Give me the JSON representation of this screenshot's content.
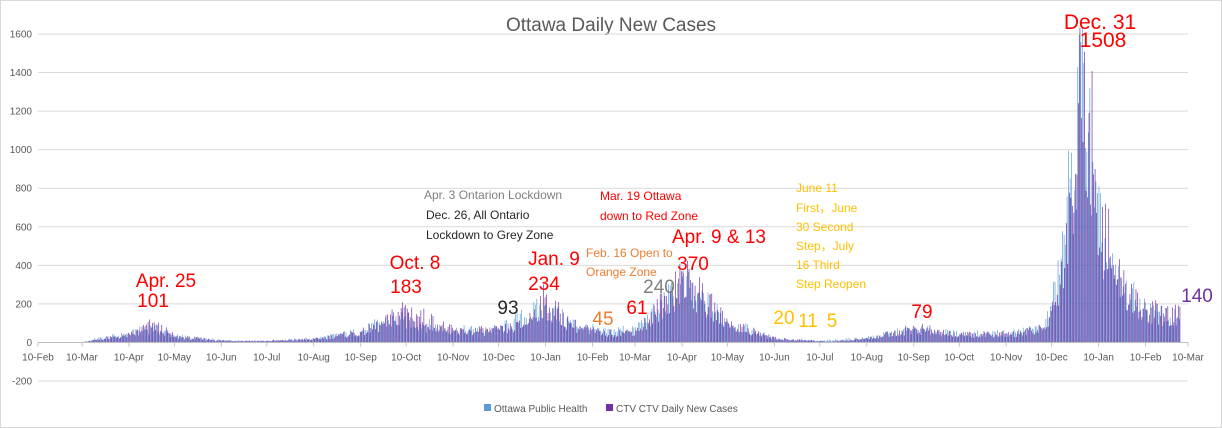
{
  "chart_data": {
    "type": "bar",
    "title": "Ottawa Daily New Cases",
    "xlabel": "",
    "ylabel": "",
    "ylim": [
      -200,
      1600
    ],
    "y_ticks": [
      -200,
      0,
      200,
      400,
      600,
      800,
      1000,
      1200,
      1400,
      1600
    ],
    "x_tick_labels": [
      "10-Feb",
      "10-Mar",
      "10-Apr",
      "10-May",
      "10-Jun",
      "10-Jul",
      "10-Aug",
      "10-Sep",
      "10-Oct",
      "10-Nov",
      "10-Dec",
      "10-Jan",
      "10-Feb",
      "10-Mar",
      "10-Apr",
      "10-May",
      "10-Jun",
      "10-Jul",
      "10-Aug",
      "10-Sep",
      "10-Oct",
      "10-Nov",
      "10-Dec",
      "10-Jan",
      "10-Feb",
      "10-Mar"
    ],
    "grid": true,
    "legend_position": "bottom",
    "series": [
      {
        "name": "Ottawa Public Health",
        "color": "#5b9bd5",
        "keypoints": [
          {
            "x": "2020-02-10",
            "y": 0
          },
          {
            "x": "2020-03-10",
            "y": 2
          },
          {
            "x": "2020-03-20",
            "y": 20
          },
          {
            "x": "2020-04-10",
            "y": 45
          },
          {
            "x": "2020-04-25",
            "y": 80
          },
          {
            "x": "2020-05-10",
            "y": 35
          },
          {
            "x": "2020-06-10",
            "y": 10
          },
          {
            "x": "2020-07-10",
            "y": 10
          },
          {
            "x": "2020-08-10",
            "y": 20
          },
          {
            "x": "2020-09-10",
            "y": 60
          },
          {
            "x": "2020-09-25",
            "y": 110
          },
          {
            "x": "2020-10-08",
            "y": 120
          },
          {
            "x": "2020-11-10",
            "y": 65
          },
          {
            "x": "2020-12-10",
            "y": 70
          },
          {
            "x": "2021-01-09",
            "y": 190
          },
          {
            "x": "2021-01-25",
            "y": 110
          },
          {
            "x": "2021-02-16",
            "y": 55
          },
          {
            "x": "2021-03-10",
            "y": 80
          },
          {
            "x": "2021-03-25",
            "y": 170
          },
          {
            "x": "2021-04-09",
            "y": 300
          },
          {
            "x": "2021-04-20",
            "y": 250
          },
          {
            "x": "2021-05-10",
            "y": 110
          },
          {
            "x": "2021-06-10",
            "y": 20
          },
          {
            "x": "2021-07-10",
            "y": 8
          },
          {
            "x": "2021-08-10",
            "y": 25
          },
          {
            "x": "2021-09-10",
            "y": 70
          },
          {
            "x": "2021-10-10",
            "y": 45
          },
          {
            "x": "2021-11-10",
            "y": 50
          },
          {
            "x": "2021-12-05",
            "y": 80
          },
          {
            "x": "2021-12-15",
            "y": 350
          },
          {
            "x": "2021-12-22",
            "y": 850
          },
          {
            "x": "2021-12-31",
            "y": 1450
          },
          {
            "x": "2022-01-07",
            "y": 700
          },
          {
            "x": "2022-01-20",
            "y": 330
          },
          {
            "x": "2022-02-10",
            "y": 170
          },
          {
            "x": "2022-03-05",
            "y": 120
          }
        ]
      },
      {
        "name": "CTV CTV Daily New Cases",
        "color": "#7030a0",
        "keypoints": [
          {
            "x": "2020-02-10",
            "y": 0
          },
          {
            "x": "2020-03-10",
            "y": 2
          },
          {
            "x": "2020-03-20",
            "y": 15
          },
          {
            "x": "2020-04-10",
            "y": 40
          },
          {
            "x": "2020-04-25",
            "y": 101
          },
          {
            "x": "2020-05-10",
            "y": 30
          },
          {
            "x": "2020-06-10",
            "y": 10
          },
          {
            "x": "2020-07-10",
            "y": 8
          },
          {
            "x": "2020-08-10",
            "y": 18
          },
          {
            "x": "2020-09-10",
            "y": 55
          },
          {
            "x": "2020-09-25",
            "y": 100
          },
          {
            "x": "2020-10-08",
            "y": 183
          },
          {
            "x": "2020-11-10",
            "y": 60
          },
          {
            "x": "2020-12-10",
            "y": 65
          },
          {
            "x": "2020-12-26",
            "y": 93
          },
          {
            "x": "2021-01-09",
            "y": 234
          },
          {
            "x": "2021-01-25",
            "y": 100
          },
          {
            "x": "2021-02-16",
            "y": 45
          },
          {
            "x": "2021-03-10",
            "y": 61
          },
          {
            "x": "2021-03-19",
            "y": 120
          },
          {
            "x": "2021-03-30",
            "y": 240
          },
          {
            "x": "2021-04-09",
            "y": 370
          },
          {
            "x": "2021-04-20",
            "y": 260
          },
          {
            "x": "2021-05-10",
            "y": 100
          },
          {
            "x": "2021-06-11",
            "y": 20
          },
          {
            "x": "2021-06-30",
            "y": 11
          },
          {
            "x": "2021-07-16",
            "y": 5
          },
          {
            "x": "2021-08-10",
            "y": 20
          },
          {
            "x": "2021-09-10",
            "y": 79
          },
          {
            "x": "2021-10-10",
            "y": 40
          },
          {
            "x": "2021-11-10",
            "y": 45
          },
          {
            "x": "2021-12-05",
            "y": 70
          },
          {
            "x": "2021-12-15",
            "y": 300
          },
          {
            "x": "2021-12-22",
            "y": 750
          },
          {
            "x": "2021-12-31",
            "y": 1508
          },
          {
            "x": "2022-01-07",
            "y": 900
          },
          {
            "x": "2022-01-20",
            "y": 350
          },
          {
            "x": "2022-02-10",
            "y": 170
          },
          {
            "x": "2022-03-05",
            "y": 140
          }
        ]
      }
    ],
    "annotations": [
      {
        "text": "Apr. 25",
        "date": "2020-04-25",
        "value": 101,
        "color": "#ff0000",
        "size": "large"
      },
      {
        "text": "101",
        "date": "2020-04-25",
        "value": 101,
        "color": "#ff0000",
        "size": "large"
      },
      {
        "text": "Oct. 8",
        "date": "2020-10-08",
        "value": 183,
        "color": "#ff0000",
        "size": "large"
      },
      {
        "text": "183",
        "date": "2020-10-08",
        "value": 183,
        "color": "#ff0000",
        "size": "large"
      },
      {
        "text": "93",
        "date": "2020-12-26",
        "value": 93,
        "color": "#262626",
        "size": "large"
      },
      {
        "text": "Jan. 9",
        "date": "2021-01-09",
        "value": 234,
        "color": "#ff0000",
        "size": "large"
      },
      {
        "text": "234",
        "date": "2021-01-09",
        "value": 234,
        "color": "#ff0000",
        "size": "large"
      },
      {
        "text": "45",
        "date": "2021-02-16",
        "value": 45,
        "color": "#ed7d31",
        "size": "large"
      },
      {
        "text": "61",
        "date": "2021-03-10",
        "value": 61,
        "color": "#ff0000",
        "size": "large"
      },
      {
        "text": "240",
        "date": "2021-03-30",
        "value": 240,
        "color": "#7f7f7f",
        "size": "large"
      },
      {
        "text": "Apr. 9 & 13",
        "date": "2021-04-09",
        "value": 370,
        "color": "#ff0000",
        "size": "large"
      },
      {
        "text": "370",
        "date": "2021-04-09",
        "value": 370,
        "color": "#ff0000",
        "size": "large"
      },
      {
        "text": "20",
        "date": "2021-06-11",
        "value": 20,
        "color": "#ffc000",
        "size": "large"
      },
      {
        "text": "11",
        "date": "2021-06-30",
        "value": 11,
        "color": "#ffc000",
        "size": "large"
      },
      {
        "text": "5",
        "date": "2021-07-16",
        "value": 5,
        "color": "#ffc000",
        "size": "large"
      },
      {
        "text": "79",
        "date": "2021-09-10",
        "value": 79,
        "color": "#ff0000",
        "size": "large"
      },
      {
        "text": "Dec. 31",
        "date": "2021-12-31",
        "value": 1508,
        "color": "#ff0000",
        "size": "large"
      },
      {
        "text": "1508",
        "date": "2021-12-31",
        "value": 1508,
        "color": "#ff0000",
        "size": "large"
      },
      {
        "text": "140",
        "date": "2022-03-05",
        "value": 140,
        "color": "#7030a0",
        "size": "large"
      },
      {
        "text": "Apr. 3 Ontarion Lockdown",
        "color": "#7f7f7f",
        "size": "small"
      },
      {
        "text": "Dec. 26, All Ontario",
        "color": "#262626",
        "size": "small"
      },
      {
        "text": "Lockdown to Grey Zone",
        "color": "#262626",
        "size": "small"
      },
      {
        "text": "Mar. 19 Ottawa",
        "color": "#ff0000",
        "size": "small"
      },
      {
        "text": "down to Red Zone",
        "color": "#ff0000",
        "size": "small"
      },
      {
        "text": "Feb. 16 Open to",
        "color": "#ed7d31",
        "size": "small"
      },
      {
        "text": "Orange Zone",
        "color": "#ed7d31",
        "size": "small"
      },
      {
        "text": "June 11",
        "color": "#ffc000",
        "size": "small"
      },
      {
        "text": "First，June",
        "color": "#ffc000",
        "size": "small"
      },
      {
        "text": "30 Second",
        "color": "#ffc000",
        "size": "small"
      },
      {
        "text": "Step，July",
        "color": "#ffc000",
        "size": "small"
      },
      {
        "text": "16 Third",
        "color": "#ffc000",
        "size": "small"
      },
      {
        "text": "Step Reopen",
        "color": "#ffc000",
        "size": "small"
      }
    ]
  }
}
